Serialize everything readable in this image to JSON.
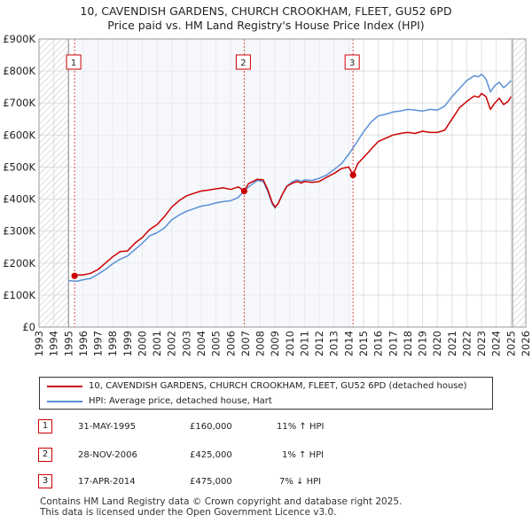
{
  "title_line1": "10, CAVENDISH GARDENS, CHURCH CROOKHAM, FLEET, GU52 6PD",
  "title_line2": "Price paid vs. HM Land Registry's House Price Index (HPI)",
  "colors": {
    "price_line": "#cc0000",
    "hpi_line": "#5b8fd6",
    "grid": "#e0e0e0",
    "hatch": "#c8c8c8",
    "band": "#eef2fa"
  },
  "chart_data": {
    "type": "line",
    "title": "Price paid vs. HM Land Registry's House Price Index (HPI)",
    "xlabel": "",
    "ylabel": "",
    "xlim": [
      1993,
      2026
    ],
    "ylim": [
      0,
      900000
    ],
    "y_ticks": [
      0,
      100000,
      200000,
      300000,
      400000,
      500000,
      600000,
      700000,
      800000,
      900000
    ],
    "y_tick_labels": [
      "£0",
      "£100K",
      "£200K",
      "£300K",
      "£400K",
      "£500K",
      "£600K",
      "£700K",
      "£800K",
      "£900K"
    ],
    "x_ticks": [
      1993,
      1994,
      1995,
      1996,
      1997,
      1998,
      1999,
      2000,
      2001,
      2002,
      2003,
      2004,
      2005,
      2006,
      2007,
      2008,
      2009,
      2010,
      2011,
      2012,
      2013,
      2014,
      2015,
      2016,
      2017,
      2018,
      2019,
      2020,
      2021,
      2022,
      2023,
      2024,
      2025,
      2026
    ],
    "x_tick_labels": [
      "1993",
      "1994",
      "1995",
      "1996",
      "1997",
      "1998",
      "1999",
      "2000",
      "2001",
      "2002",
      "2003",
      "2004",
      "2005",
      "2006",
      "2007",
      "2008",
      "2009",
      "2010",
      "2011",
      "2012",
      "2013",
      "2014",
      "2015",
      "2016",
      "2017",
      "2018",
      "2019",
      "2020",
      "2021",
      "2022",
      "2023",
      "2024",
      "2025",
      "2026"
    ],
    "hatched_ranges": [
      [
        1993,
        1995.0
      ],
      [
        2025.1,
        2026
      ]
    ],
    "grid": true,
    "series": [
      {
        "name": "10, CAVENDISH GARDENS, CHURCH CROOKHAM, FLEET, GU52 6PD (detached house)",
        "color": "#cc0000",
        "x": [
          1995.41,
          1995.7,
          1996.0,
          1996.5,
          1997.0,
          1997.5,
          1998.0,
          1998.5,
          1999.0,
          1999.5,
          2000.0,
          2000.5,
          2001.0,
          2001.5,
          2002.0,
          2002.5,
          2003.0,
          2003.5,
          2004.0,
          2004.5,
          2005.0,
          2005.5,
          2006.0,
          2006.5,
          2006.91,
          2007.2,
          2007.5,
          2007.8,
          2008.2,
          2008.5,
          2008.8,
          2009.0,
          2009.2,
          2009.5,
          2009.8,
          2010.2,
          2010.5,
          2010.8,
          2011.0,
          2011.5,
          2012.0,
          2012.5,
          2013.0,
          2013.5,
          2014.0,
          2014.29,
          2014.6,
          2015.0,
          2015.5,
          2016.0,
          2016.5,
          2017.0,
          2017.5,
          2018.0,
          2018.5,
          2019.0,
          2019.5,
          2020.0,
          2020.5,
          2021.0,
          2021.5,
          2022.0,
          2022.5,
          2022.8,
          2023.0,
          2023.3,
          2023.6,
          2023.9,
          2024.2,
          2024.5,
          2024.8,
          2025.0
        ],
        "values": [
          160000,
          163000,
          163000,
          168000,
          180000,
          200000,
          220000,
          236000,
          238000,
          262000,
          280000,
          305000,
          320000,
          345000,
          375000,
          395000,
          410000,
          418000,
          425000,
          428000,
          432000,
          435000,
          430000,
          438000,
          425000,
          448000,
          455000,
          462000,
          460000,
          430000,
          390000,
          375000,
          385000,
          415000,
          440000,
          450000,
          455000,
          450000,
          455000,
          452000,
          455000,
          468000,
          480000,
          495000,
          500000,
          475000,
          510000,
          530000,
          555000,
          580000,
          590000,
          600000,
          605000,
          608000,
          605000,
          612000,
          608000,
          608000,
          615000,
          650000,
          685000,
          705000,
          722000,
          718000,
          730000,
          720000,
          680000,
          700000,
          715000,
          695000,
          705000,
          720000
        ]
      },
      {
        "name": "HPI: Average price, detached house, Hart",
        "color": "#5b8fd6",
        "x": [
          1995.0,
          1995.5,
          1996.0,
          1996.5,
          1997.0,
          1997.5,
          1998.0,
          1998.5,
          1999.0,
          1999.5,
          2000.0,
          2000.5,
          2001.0,
          2001.5,
          2002.0,
          2002.5,
          2003.0,
          2003.5,
          2004.0,
          2004.5,
          2005.0,
          2005.5,
          2006.0,
          2006.5,
          2007.0,
          2007.5,
          2007.8,
          2008.2,
          2008.5,
          2008.8,
          2009.0,
          2009.2,
          2009.5,
          2009.8,
          2010.2,
          2010.5,
          2010.8,
          2011.0,
          2011.5,
          2012.0,
          2012.5,
          2013.0,
          2013.5,
          2014.0,
          2014.5,
          2015.0,
          2015.5,
          2016.0,
          2016.5,
          2017.0,
          2017.5,
          2018.0,
          2018.5,
          2019.0,
          2019.5,
          2020.0,
          2020.5,
          2021.0,
          2021.5,
          2022.0,
          2022.5,
          2022.8,
          2023.0,
          2023.3,
          2023.6,
          2023.9,
          2024.2,
          2024.5,
          2024.8,
          2025.0
        ],
        "values": [
          145000,
          143000,
          148000,
          152000,
          165000,
          180000,
          198000,
          212000,
          222000,
          242000,
          262000,
          285000,
          295000,
          310000,
          335000,
          350000,
          362000,
          370000,
          378000,
          382000,
          388000,
          392000,
          395000,
          405000,
          430000,
          448000,
          458000,
          455000,
          425000,
          385000,
          372000,
          385000,
          415000,
          440000,
          455000,
          460000,
          455000,
          460000,
          458000,
          465000,
          475000,
          492000,
          510000,
          540000,
          575000,
          610000,
          640000,
          660000,
          665000,
          672000,
          675000,
          680000,
          678000,
          675000,
          680000,
          678000,
          690000,
          720000,
          745000,
          770000,
          785000,
          782000,
          790000,
          775000,
          735000,
          755000,
          765000,
          748000,
          760000,
          770000
        ]
      }
    ],
    "sales": [
      {
        "label": "1",
        "x": 1995.41,
        "price": 160000
      },
      {
        "label": "2",
        "x": 2006.91,
        "price": 425000
      },
      {
        "label": "3",
        "x": 2014.29,
        "price": 475000
      }
    ]
  },
  "legend": {
    "price_label": "10, CAVENDISH GARDENS, CHURCH CROOKHAM, FLEET, GU52 6PD (detached house)",
    "hpi_label": "HPI: Average price, detached house, Hart"
  },
  "sales_table": [
    {
      "num": "1",
      "date": "31-MAY-1995",
      "price": "£160,000",
      "hpi": "11% ↑ HPI"
    },
    {
      "num": "2",
      "date": "28-NOV-2006",
      "price": "£425,000",
      "hpi": "1% ↑ HPI"
    },
    {
      "num": "3",
      "date": "17-APR-2014",
      "price": "£475,000",
      "hpi": "7% ↓ HPI"
    }
  ],
  "footer": {
    "line1": "Contains HM Land Registry data © Crown copyright and database right 2025.",
    "line2": "This data is licensed under the Open Government Licence v3.0."
  }
}
